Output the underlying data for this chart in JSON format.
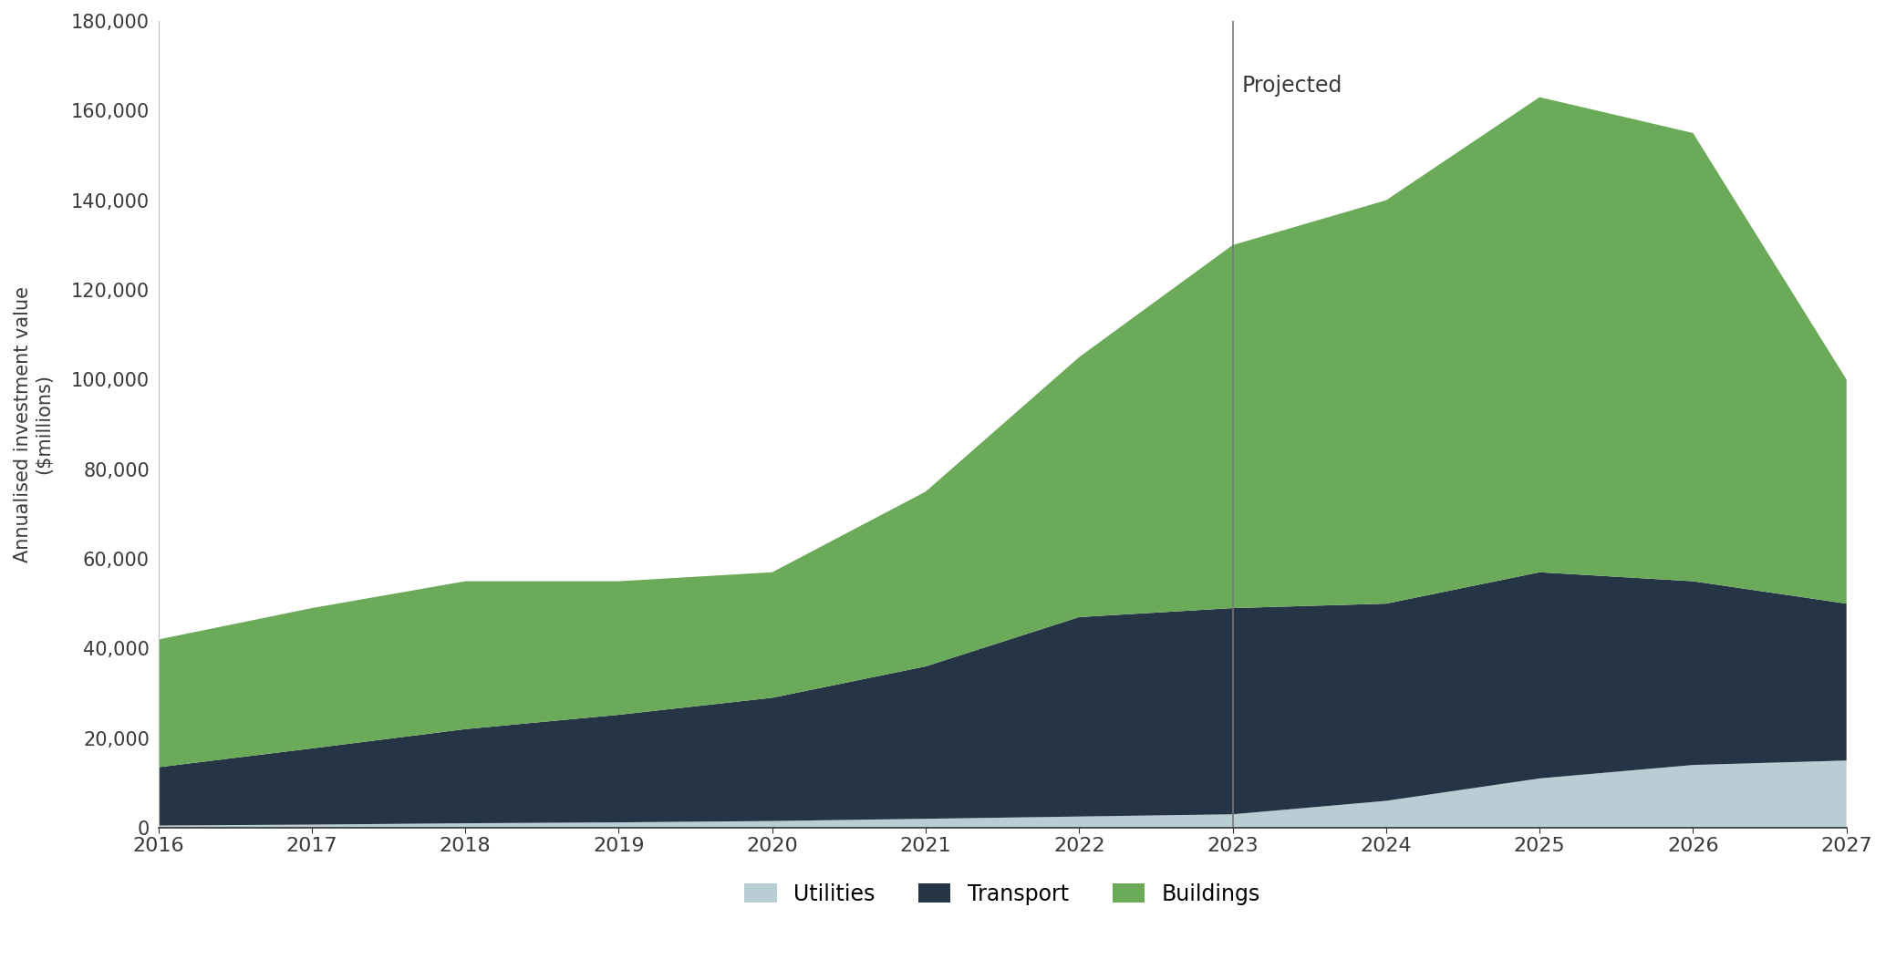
{
  "years": [
    2016,
    2017,
    2018,
    2019,
    2020,
    2021,
    2022,
    2023,
    2024,
    2025,
    2026,
    2027
  ],
  "utilities": [
    500,
    700,
    1000,
    1200,
    1500,
    2000,
    2500,
    3000,
    6000,
    11000,
    14000,
    15000
  ],
  "transport": [
    13000,
    17000,
    21000,
    24000,
    27500,
    34000,
    44500,
    46000,
    44000,
    46000,
    41000,
    35000
  ],
  "buildings": [
    28500,
    31300,
    33000,
    29800,
    28000,
    39000,
    58000,
    81000,
    90000,
    106000,
    100000,
    50000
  ],
  "colors": {
    "utilities": "#b8cdd4",
    "transport": "#263545",
    "buildings": "#6aaa58"
  },
  "ylabel": "Annualised investment value\n($millions)",
  "ylim": [
    0,
    180000
  ],
  "yticks": [
    0,
    20000,
    40000,
    60000,
    80000,
    100000,
    120000,
    140000,
    160000,
    180000
  ],
  "vline_x": 2023,
  "vline_label": "Projected",
  "legend_labels": [
    "Utilities",
    "Transport",
    "Buildings"
  ],
  "background_color": "#ffffff",
  "font_color": "#3a3a3a"
}
